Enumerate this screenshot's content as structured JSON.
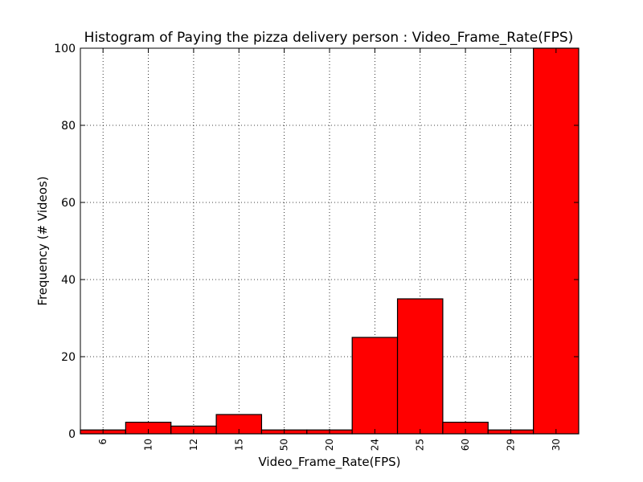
{
  "chart_data": {
    "type": "bar",
    "title": "Histogram of Paying the pizza delivery person : Video_Frame_Rate(FPS)",
    "xlabel": "Video_Frame_Rate(FPS)",
    "ylabel": "Frequency (# Videos)",
    "categories": [
      "6",
      "10",
      "12",
      "15",
      "50",
      "20",
      "24",
      "25",
      "60",
      "29",
      "30"
    ],
    "values": [
      1,
      3,
      2,
      5,
      1,
      1,
      25,
      35,
      3,
      1,
      100
    ],
    "ylim": [
      0,
      100
    ],
    "yticks": [
      "0",
      "20",
      "40",
      "60",
      "80",
      "100"
    ],
    "grid": true,
    "bar_color": "#ff0000",
    "edge_color": "#000000"
  }
}
